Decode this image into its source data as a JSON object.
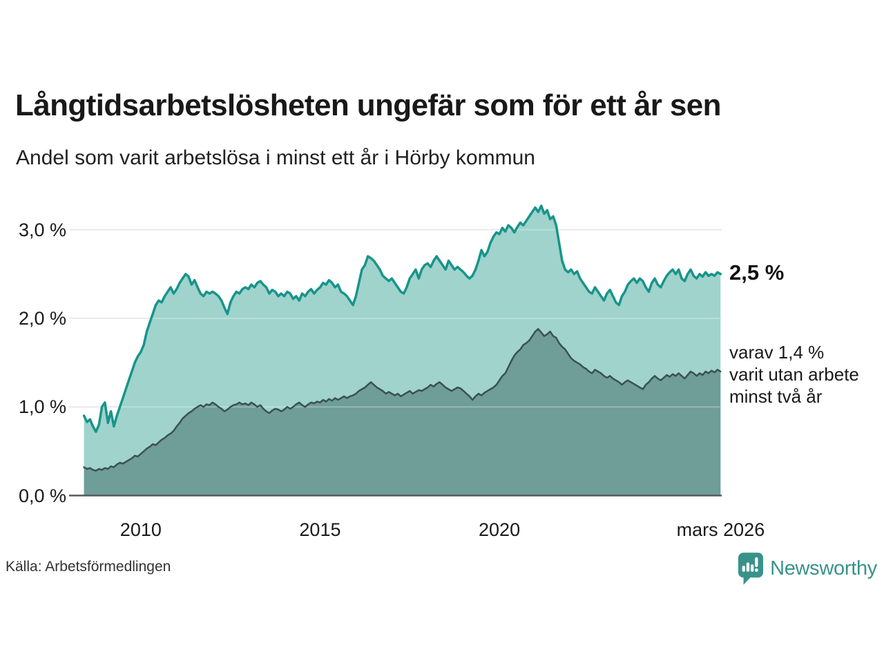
{
  "header": {
    "title": "Långtidsarbetslösheten ungefär som för ett år sen",
    "subtitle": "Andel som varit arbetslösa i minst ett år i Hörby kommun"
  },
  "annotations": {
    "total_end_label": "2,5 %",
    "breakdown_end_label": "varav 1,4 %\nvarit utan arbete\nminst två år"
  },
  "footer": {
    "source": "Källa: Arbetsförmedlingen",
    "brand": "Newsworthy"
  },
  "colors": {
    "line_total": "#18948b",
    "fill_total": "#9fd3cc",
    "line_two_years": "#3a514e",
    "fill_two_years": "#6f9d98",
    "gridline": "#e2e2e9",
    "axis_baseline": "#55595c",
    "brand_teal": "#39928a",
    "text": "#1a1a1a"
  },
  "chart_data": {
    "type": "area",
    "title": "Långtidsarbetslösheten ungefär som för ett år sen",
    "subtitle": "Andel som varit arbetslösa i minst ett år i Hörby kommun",
    "unit": "%",
    "x_start": 2008.4167,
    "x_step_years": 0.0833333,
    "xlim": [
      2008.0,
      2026.2
    ],
    "ylim": [
      0,
      3.41
    ],
    "grid": true,
    "legend_position": "none",
    "yticks": [
      {
        "v": 0,
        "label": "0,0 %"
      },
      {
        "v": 1,
        "label": "1,0 %"
      },
      {
        "v": 2,
        "label": "2,0 %"
      },
      {
        "v": 3,
        "label": "3,0 %"
      }
    ],
    "xticks": [
      {
        "v": 2010,
        "label": "2010"
      },
      {
        "v": 2015,
        "label": "2015"
      },
      {
        "v": 2020,
        "label": "2020"
      },
      {
        "v": 2026.17,
        "label": "mars 2026"
      }
    ],
    "series": [
      {
        "name": "Arbetslösa minst ett år",
        "end_value": 2.5,
        "values": [
          0.9,
          0.83,
          0.86,
          0.78,
          0.72,
          0.8,
          1.0,
          1.05,
          0.82,
          0.95,
          0.78,
          0.9,
          1.0,
          1.1,
          1.2,
          1.3,
          1.4,
          1.5,
          1.57,
          1.62,
          1.7,
          1.85,
          1.95,
          2.05,
          2.15,
          2.2,
          2.18,
          2.25,
          2.3,
          2.35,
          2.28,
          2.33,
          2.4,
          2.45,
          2.5,
          2.47,
          2.38,
          2.43,
          2.35,
          2.28,
          2.25,
          2.3,
          2.28,
          2.3,
          2.28,
          2.25,
          2.2,
          2.12,
          2.05,
          2.18,
          2.25,
          2.3,
          2.28,
          2.33,
          2.35,
          2.33,
          2.38,
          2.35,
          2.4,
          2.42,
          2.38,
          2.35,
          2.28,
          2.32,
          2.3,
          2.25,
          2.28,
          2.25,
          2.3,
          2.28,
          2.22,
          2.25,
          2.2,
          2.28,
          2.25,
          2.3,
          2.33,
          2.28,
          2.32,
          2.35,
          2.4,
          2.38,
          2.43,
          2.4,
          2.35,
          2.38,
          2.3,
          2.28,
          2.25,
          2.2,
          2.15,
          2.25,
          2.4,
          2.55,
          2.6,
          2.7,
          2.68,
          2.65,
          2.6,
          2.55,
          2.48,
          2.45,
          2.42,
          2.45,
          2.4,
          2.35,
          2.3,
          2.28,
          2.35,
          2.45,
          2.5,
          2.55,
          2.45,
          2.55,
          2.6,
          2.62,
          2.58,
          2.65,
          2.7,
          2.65,
          2.6,
          2.55,
          2.65,
          2.6,
          2.55,
          2.58,
          2.55,
          2.52,
          2.48,
          2.45,
          2.48,
          2.55,
          2.65,
          2.77,
          2.7,
          2.75,
          2.85,
          2.92,
          2.97,
          2.95,
          3.02,
          2.98,
          3.05,
          3.02,
          2.97,
          3.03,
          3.08,
          3.05,
          3.1,
          3.15,
          3.2,
          3.25,
          3.2,
          3.27,
          3.18,
          3.22,
          3.12,
          3.15,
          3.05,
          2.85,
          2.65,
          2.55,
          2.52,
          2.55,
          2.5,
          2.53,
          2.45,
          2.4,
          2.35,
          2.3,
          2.28,
          2.35,
          2.3,
          2.25,
          2.2,
          2.28,
          2.32,
          2.25,
          2.18,
          2.15,
          2.25,
          2.3,
          2.38,
          2.42,
          2.45,
          2.4,
          2.45,
          2.42,
          2.35,
          2.3,
          2.4,
          2.45,
          2.38,
          2.35,
          2.42,
          2.48,
          2.52,
          2.55,
          2.5,
          2.55,
          2.45,
          2.42,
          2.5,
          2.55,
          2.48,
          2.45,
          2.5,
          2.47,
          2.52,
          2.48,
          2.5,
          2.48,
          2.52,
          2.5
        ]
      },
      {
        "name": "Varav utan arbete minst två år",
        "end_value": 1.4,
        "values": [
          0.32,
          0.3,
          0.31,
          0.29,
          0.28,
          0.3,
          0.29,
          0.31,
          0.3,
          0.33,
          0.32,
          0.35,
          0.37,
          0.36,
          0.38,
          0.4,
          0.42,
          0.45,
          0.44,
          0.47,
          0.5,
          0.53,
          0.55,
          0.58,
          0.57,
          0.6,
          0.63,
          0.65,
          0.68,
          0.7,
          0.73,
          0.78,
          0.82,
          0.87,
          0.9,
          0.93,
          0.95,
          0.98,
          1.0,
          1.02,
          1.0,
          1.03,
          1.02,
          1.05,
          1.03,
          1.0,
          0.98,
          0.95,
          0.97,
          1.0,
          1.02,
          1.03,
          1.05,
          1.03,
          1.04,
          1.02,
          1.05,
          1.03,
          1.0,
          1.02,
          0.98,
          0.95,
          0.93,
          0.96,
          0.98,
          0.97,
          0.95,
          0.97,
          1.0,
          0.98,
          1.0,
          1.03,
          1.05,
          1.02,
          1.0,
          1.03,
          1.05,
          1.04,
          1.06,
          1.05,
          1.08,
          1.06,
          1.09,
          1.07,
          1.1,
          1.08,
          1.1,
          1.12,
          1.1,
          1.12,
          1.13,
          1.15,
          1.18,
          1.2,
          1.22,
          1.25,
          1.28,
          1.25,
          1.22,
          1.2,
          1.18,
          1.15,
          1.17,
          1.15,
          1.13,
          1.15,
          1.12,
          1.14,
          1.16,
          1.18,
          1.15,
          1.17,
          1.19,
          1.18,
          1.2,
          1.22,
          1.25,
          1.23,
          1.26,
          1.28,
          1.25,
          1.22,
          1.2,
          1.18,
          1.2,
          1.22,
          1.21,
          1.18,
          1.15,
          1.12,
          1.08,
          1.12,
          1.15,
          1.13,
          1.16,
          1.18,
          1.2,
          1.22,
          1.25,
          1.3,
          1.35,
          1.38,
          1.45,
          1.52,
          1.58,
          1.62,
          1.65,
          1.7,
          1.72,
          1.75,
          1.8,
          1.85,
          1.88,
          1.84,
          1.8,
          1.82,
          1.85,
          1.8,
          1.78,
          1.72,
          1.68,
          1.65,
          1.6,
          1.55,
          1.52,
          1.5,
          1.48,
          1.45,
          1.43,
          1.4,
          1.38,
          1.42,
          1.4,
          1.38,
          1.35,
          1.33,
          1.35,
          1.32,
          1.3,
          1.28,
          1.25,
          1.28,
          1.3,
          1.28,
          1.26,
          1.24,
          1.22,
          1.2,
          1.25,
          1.28,
          1.32,
          1.35,
          1.32,
          1.3,
          1.33,
          1.36,
          1.34,
          1.37,
          1.35,
          1.38,
          1.35,
          1.32,
          1.36,
          1.4,
          1.38,
          1.35,
          1.38,
          1.36,
          1.4,
          1.38,
          1.41,
          1.39,
          1.42,
          1.4
        ]
      }
    ]
  }
}
